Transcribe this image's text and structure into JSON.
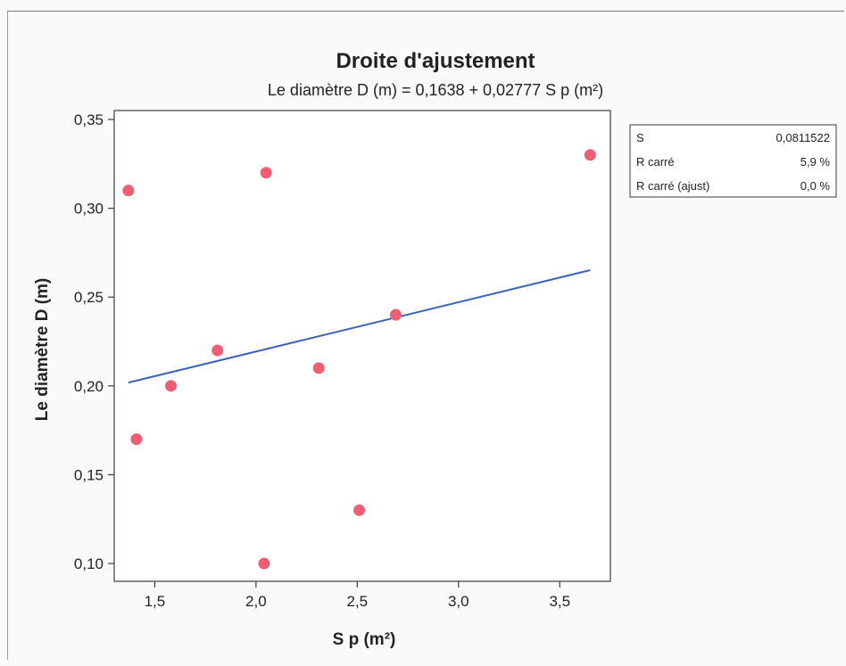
{
  "chart_data": {
    "type": "scatter",
    "title": "Droite d'ajustement",
    "subtitle": "Le diamètre D (m)  =  0,1638 + 0,02777 S p (m²)",
    "xlabel": "S p (m²)",
    "ylabel": "Le diamètre D (m)",
    "xlim": [
      1.3,
      3.75
    ],
    "ylim": [
      0.09,
      0.355
    ],
    "x_ticks": [
      1.5,
      2.0,
      2.5,
      3.0,
      3.5
    ],
    "x_tick_labels": [
      "1,5",
      "2,0",
      "2,5",
      "3,0",
      "3,5"
    ],
    "y_ticks": [
      0.1,
      0.15,
      0.2,
      0.25,
      0.3,
      0.35
    ],
    "y_tick_labels": [
      "0,10",
      "0,15",
      "0,20",
      "0,25",
      "0,30",
      "0,35"
    ],
    "grid": false,
    "points": [
      {
        "x": 1.37,
        "y": 0.31
      },
      {
        "x": 1.41,
        "y": 0.17
      },
      {
        "x": 1.58,
        "y": 0.2
      },
      {
        "x": 1.81,
        "y": 0.22
      },
      {
        "x": 2.04,
        "y": 0.1
      },
      {
        "x": 2.05,
        "y": 0.32
      },
      {
        "x": 2.31,
        "y": 0.21
      },
      {
        "x": 2.51,
        "y": 0.13
      },
      {
        "x": 2.69,
        "y": 0.24
      },
      {
        "x": 3.65,
        "y": 0.33
      }
    ],
    "fit_line": {
      "intercept": 0.1638,
      "slope": 0.02777,
      "x_range": [
        1.37,
        3.65
      ]
    },
    "point_color": "#ee5f76",
    "line_color": "#3a63b8",
    "stats": [
      {
        "label": "S",
        "value": "0,0811522"
      },
      {
        "label": "R carré",
        "value": "5,9 %"
      },
      {
        "label": "R carré (ajust)",
        "value": "0,0 %"
      }
    ]
  }
}
